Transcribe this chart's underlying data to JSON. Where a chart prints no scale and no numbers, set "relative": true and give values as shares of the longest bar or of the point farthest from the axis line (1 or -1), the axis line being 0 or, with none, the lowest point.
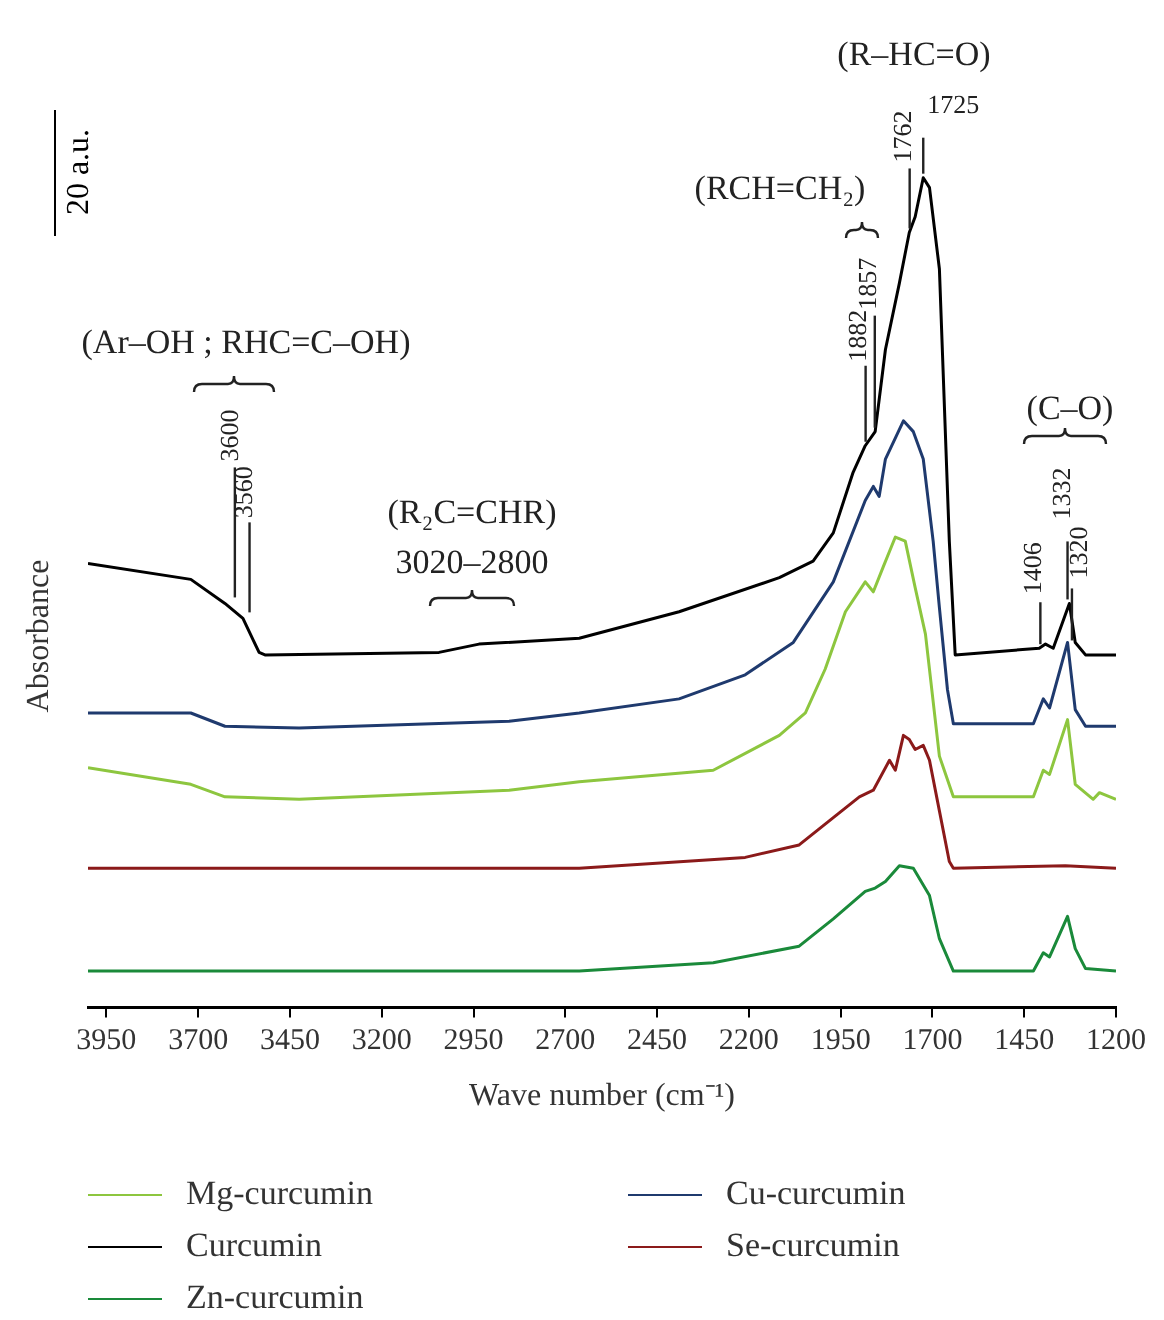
{
  "chart_data": {
    "type": "line",
    "relative": true,
    "xlabel": "Wave number (cm⁻¹)",
    "ylabel": "Absorbance",
    "legend": "bottom",
    "xlim": [
      4000,
      1200
    ],
    "xticks": [
      3950,
      3700,
      3450,
      3200,
      2950,
      2700,
      2450,
      2200,
      1950,
      1700,
      1450,
      1200
    ],
    "series": [
      {
        "name": "Mg-curcumin",
        "color": "#8dc63f",
        "x": [
          4000,
          3720,
          3627,
          3425,
          2853,
          2662,
          2297,
          2117,
          2046,
          1992,
          1937,
          1883,
          1861,
          1834,
          1801,
          1774,
          1747,
          1719,
          1681,
          1643,
          1425,
          1398,
          1381,
          1332,
          1311,
          1262,
          1245,
          1200
        ],
        "values": [
          0.289,
          0.269,
          0.254,
          0.251,
          0.262,
          0.272,
          0.286,
          0.328,
          0.355,
          0.408,
          0.477,
          0.513,
          0.501,
          0.531,
          0.567,
          0.562,
          0.506,
          0.45,
          0.303,
          0.254,
          0.254,
          0.286,
          0.281,
          0.347,
          0.269,
          0.251,
          0.259,
          0.251
        ]
      },
      {
        "name": "Cu-curcumin",
        "color": "#1f3a6e",
        "x": [
          4000,
          3720,
          3627,
          3425,
          2853,
          2662,
          2390,
          2210,
          2079,
          1970,
          1883,
          1861,
          1845,
          1828,
          1779,
          1752,
          1725,
          1698,
          1681,
          1659,
          1643,
          1425,
          1398,
          1381,
          1332,
          1311,
          1283,
          1200
        ],
        "values": [
          0.355,
          0.355,
          0.339,
          0.337,
          0.345,
          0.355,
          0.372,
          0.401,
          0.44,
          0.513,
          0.611,
          0.628,
          0.616,
          0.661,
          0.707,
          0.694,
          0.661,
          0.562,
          0.482,
          0.383,
          0.342,
          0.342,
          0.372,
          0.361,
          0.44,
          0.359,
          0.339,
          0.339
        ]
      },
      {
        "name": "Curcumin",
        "color": "#000000",
        "x": [
          4000,
          3720,
          3627,
          3578,
          3534,
          3518,
          3044,
          2935,
          2662,
          2390,
          2117,
          2025,
          1970,
          1916,
          1883,
          1856,
          1828,
          1790,
          1763,
          1747,
          1725,
          1708,
          1681,
          1654,
          1638,
          1409,
          1392,
          1371,
          1327,
          1311,
          1283,
          1200
        ],
        "values": [
          0.535,
          0.516,
          0.487,
          0.469,
          0.428,
          0.425,
          0.428,
          0.438,
          0.445,
          0.477,
          0.518,
          0.538,
          0.572,
          0.645,
          0.677,
          0.694,
          0.793,
          0.873,
          0.934,
          0.953,
          1,
          0.988,
          0.89,
          0.562,
          0.425,
          0.433,
          0.438,
          0.433,
          0.487,
          0.44,
          0.425,
          0.425
        ]
      },
      {
        "name": "Se-curcumin",
        "color": "#8b1a1a",
        "x": [
          4000,
          2662,
          2210,
          2063,
          1970,
          1899,
          1861,
          1817,
          1801,
          1779,
          1763,
          1747,
          1725,
          1708,
          1681,
          1654,
          1643,
          1338,
          1200
        ],
        "values": [
          0.168,
          0.168,
          0.181,
          0.196,
          0.229,
          0.254,
          0.262,
          0.298,
          0.286,
          0.328,
          0.323,
          0.311,
          0.316,
          0.298,
          0.237,
          0.176,
          0.168,
          0.171,
          0.168
        ]
      },
      {
        "name": "Zn-curcumin",
        "color": "#1a8a3a",
        "x": [
          4000,
          2662,
          2297,
          2063,
          1970,
          1883,
          1856,
          1828,
          1790,
          1752,
          1708,
          1681,
          1643,
          1425,
          1398,
          1381,
          1332,
          1311,
          1283,
          1200
        ],
        "values": [
          0.044,
          0.044,
          0.054,
          0.074,
          0.107,
          0.14,
          0.144,
          0.152,
          0.171,
          0.168,
          0.135,
          0.083,
          0.044,
          0.044,
          0.066,
          0.061,
          0.11,
          0.071,
          0.047,
          0.044
        ]
      }
    ],
    "annotations": [
      "20 a.u.",
      "(Ar–OH ; RHC=C–OH)",
      {
        "text": "3600",
        "x": 3600,
        "y": 0.487
      },
      {
        "text": "3560",
        "x": 3560,
        "y": 0.469
      },
      "(R₂C=CHR)",
      "3020–2800",
      "(RCH=CH₂)",
      {
        "text": "1882",
        "x": 1882,
        "y": 0.677
      },
      {
        "text": "1857",
        "x": 1857,
        "y": 0.694
      },
      "(R–HC=O)",
      {
        "text": "1762",
        "x": 1762,
        "y": 0.934
      },
      {
        "text": "1725",
        "x": 1725,
        "y": 1
      },
      "(C–O)",
      {
        "text": "1406",
        "x": 1406,
        "y": 0.433
      },
      {
        "text": "1332",
        "x": 1332,
        "y": 0.487
      },
      {
        "text": "1320",
        "x": 1320,
        "y": 0.44
      }
    ]
  }
}
